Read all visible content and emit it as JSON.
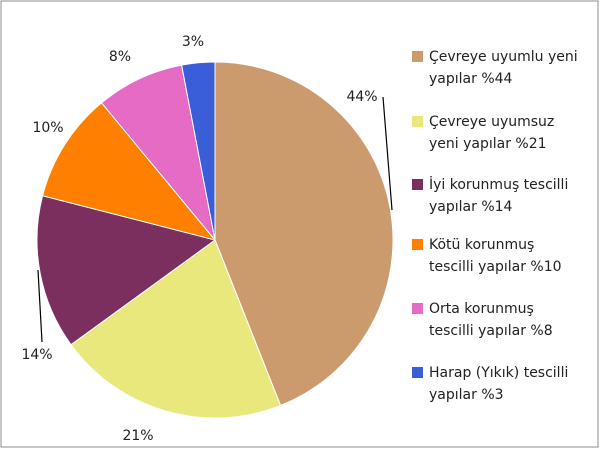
{
  "chart_data": {
    "type": "pie",
    "categories": [
      "Çevreye uyumlu yeni yapılar %44",
      "Çevreye uyumsuz yeni yapılar %21",
      "İyi korunmuş tescilli yapılar %14",
      "Kötü korunmuş tescilli yapılar %10",
      "Orta korunmuş tescilli yapılar %8",
      "Harap (Yıkık) tescilli yapılar %3"
    ],
    "values": [
      44,
      21,
      14,
      10,
      8,
      3
    ],
    "value_labels": [
      "44%",
      "21%",
      "14%",
      "10%",
      "8%",
      "3%"
    ],
    "colors": [
      "#cc9b6d",
      "#e8e87c",
      "#7b2f5e",
      "#ff8000",
      "#e66bc4",
      "#3a5ed8"
    ],
    "legend": "right"
  }
}
